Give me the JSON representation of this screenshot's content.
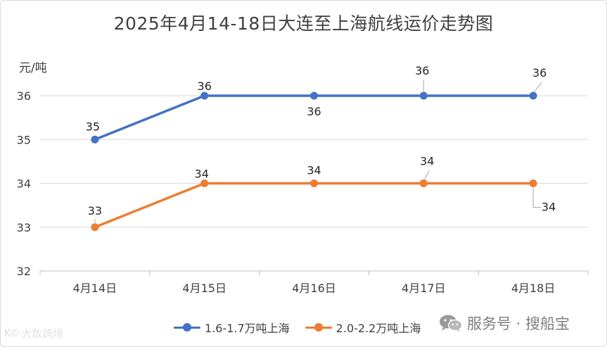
{
  "chart_data": {
    "type": "line",
    "title": "2025年4月14-18日大连至上海航线运价走势图",
    "ylabel": "元/吨",
    "ylim": [
      32,
      36
    ],
    "yticks": [
      "32",
      "33",
      "34",
      "35",
      "36"
    ],
    "categories": [
      "4月14日",
      "4月15日",
      "4月16日",
      "4月17日",
      "4月18日"
    ],
    "grid": true,
    "legend_position": "bottom",
    "series": [
      {
        "name": "1.6-1.7万吨上海",
        "color": "#4472c4",
        "values": [
          35,
          36,
          36,
          36,
          36
        ],
        "labels": [
          "35",
          "36",
          "36",
          "36",
          "36"
        ]
      },
      {
        "name": "2.0-2.2万吨上海",
        "color": "#ed7d31",
        "values": [
          33,
          34,
          34,
          34,
          34
        ],
        "labels": [
          "33",
          "34",
          "34",
          "34",
          "34"
        ]
      }
    ]
  },
  "watermark": {
    "right_text": "服务号 · 搜船宝",
    "left_logo": "K©",
    "left_text": "大数跨境",
    "icon": "wechat-icon"
  }
}
